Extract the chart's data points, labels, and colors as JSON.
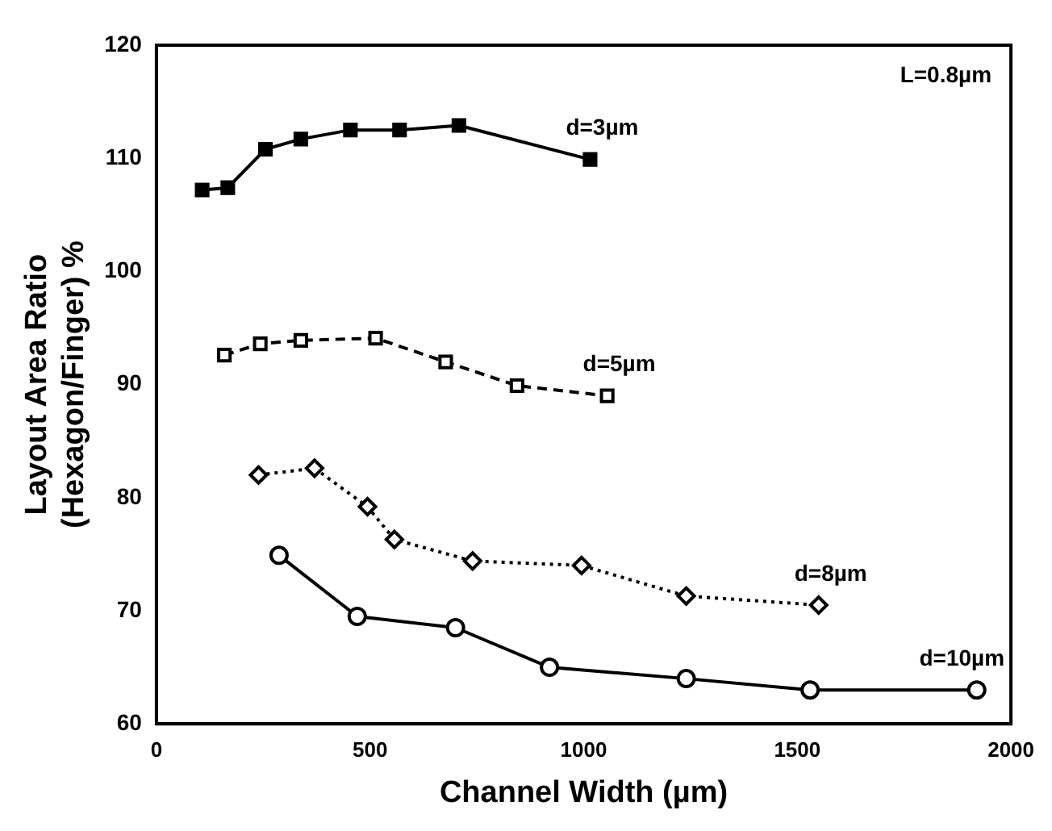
{
  "chart_data": {
    "type": "line",
    "xlabel": "Channel Width (µm)",
    "ylabel": "Layout Area Ratio\n(Hexagon/Finger) %",
    "annotations": [
      "L=0.8µm"
    ],
    "series": [
      {
        "name": "d=3µm",
        "color": "#000000",
        "marker": "square",
        "line_style": "solid",
        "x": [
          107,
          167,
          255,
          338,
          454,
          569,
          708,
          1015
        ],
        "values": [
          107.2,
          107.4,
          110.8,
          111.7,
          112.5,
          112.5,
          112.9,
          109.9
        ]
      },
      {
        "name": "d=5µm",
        "color": "#000000",
        "marker": "square",
        "line_style": "dashed",
        "x": [
          159,
          243,
          338,
          513,
          677,
          844,
          1055
        ],
        "values": [
          92.6,
          93.6,
          93.9,
          94.1,
          92,
          89.9,
          89
        ]
      },
      {
        "name": "d=8µm",
        "color": "#000000",
        "marker": "diamond",
        "line_style": "dotted",
        "x": [
          239,
          370,
          494,
          557,
          740,
          995,
          1240,
          1550
        ],
        "values": [
          82,
          82.6,
          79.2,
          76.3,
          74.4,
          74,
          71.3,
          70.5
        ]
      },
      {
        "name": "d=10µm",
        "color": "#000000",
        "marker": "circle",
        "line_style": "solid",
        "x": [
          287,
          470,
          700,
          920,
          1240,
          1530,
          1920
        ],
        "values": [
          74.9,
          69.5,
          68.5,
          65,
          64,
          63,
          63
        ]
      }
    ],
    "xlim": [
      0,
      2000
    ],
    "xticks": [
      0,
      500,
      1000,
      1500,
      2000
    ],
    "ylim": [
      60,
      120
    ],
    "yticks": [
      60,
      70,
      80,
      90,
      100,
      110,
      120
    ],
    "grid": false,
    "legend": false
  }
}
